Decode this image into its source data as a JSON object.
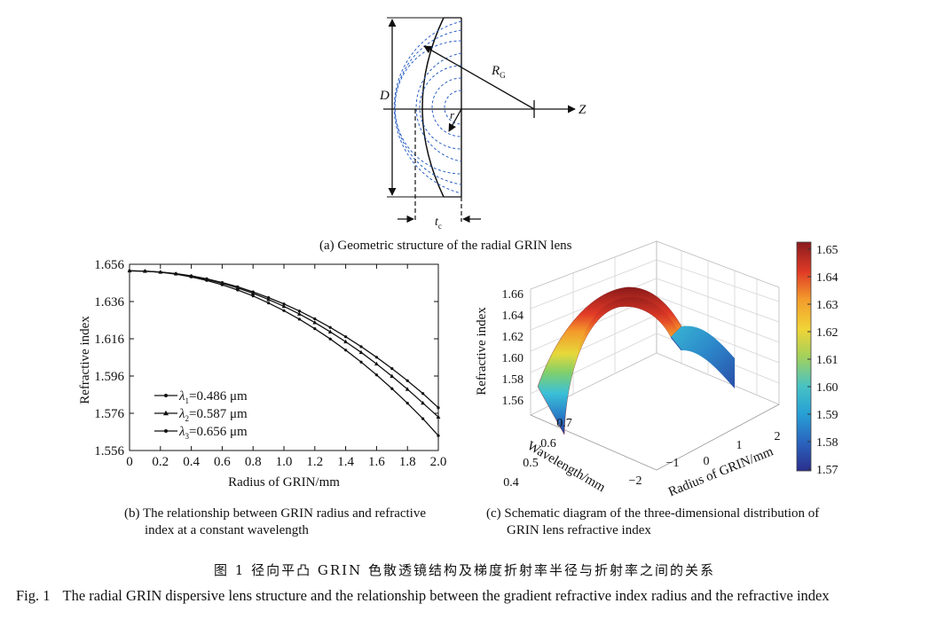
{
  "panel_a": {
    "label_D": "D",
    "label_RG": "R",
    "label_RG_sub": "G",
    "label_r": "r",
    "label_Z": "Z",
    "label_tc": "t",
    "label_tc_sub": "c",
    "caption": "(a) Geometric structure of the radial GRIN lens"
  },
  "panel_b": {
    "caption_line1": "(b) The relationship between GRIN radius and refractive",
    "caption_line2": "index at a constant wavelength"
  },
  "panel_c": {
    "caption_line1": "(c) Schematic diagram of the three-dimensional distribution of",
    "caption_line2": "GRIN lens refractive index",
    "zlabel": "Refractive index",
    "ylabel": "Wavelength/mm",
    "xlabel": "Radius of GRIN/mm",
    "zticks": [
      "1.56",
      "1.58",
      "1.60",
      "1.62",
      "1.64",
      "1.66"
    ],
    "yticks": [
      "0.4",
      "0.5",
      "0.6",
      "0.7"
    ],
    "xticks": [
      "−2",
      "−1",
      "0",
      "1",
      "2"
    ],
    "colorbar_ticks": [
      "1.65",
      "1.64",
      "1.63",
      "1.62",
      "1.61",
      "1.60",
      "1.59",
      "1.58",
      "1.57"
    ]
  },
  "chart_data": [
    {
      "type": "line",
      "xlabel": "Radius of GRIN/mm",
      "ylabel": "Refractive index",
      "xlim": [
        0,
        2.0
      ],
      "ylim": [
        1.556,
        1.656
      ],
      "xticks": [
        "0",
        "0.2",
        "0.4",
        "0.6",
        "0.8",
        "1.0",
        "1.2",
        "1.4",
        "1.6",
        "1.8",
        "2.0"
      ],
      "yticks": [
        "1.556",
        "1.576",
        "1.596",
        "1.616",
        "1.636",
        "1.656"
      ],
      "x": [
        0,
        0.1,
        0.2,
        0.3,
        0.4,
        0.5,
        0.6,
        0.7,
        0.8,
        0.9,
        1.0,
        1.1,
        1.2,
        1.3,
        1.4,
        1.5,
        1.6,
        1.7,
        1.8,
        1.9,
        2.0
      ],
      "series": [
        {
          "name": "λ1=0.486 μm",
          "legend_symbol": "λ",
          "legend_sub": "1",
          "legend_value": "=0.486 μm",
          "values": [
            1.6525,
            1.6523,
            1.6517,
            1.6507,
            1.6492,
            1.6473,
            1.645,
            1.6422,
            1.639,
            1.6352,
            1.6311,
            1.6265,
            1.6214,
            1.6159,
            1.6099,
            1.6035,
            1.5966,
            1.5892,
            1.5814,
            1.5731,
            1.564
          ]
        },
        {
          "name": "λ2=0.587 μm",
          "legend_symbol": "λ",
          "legend_sub": "2",
          "legend_value": "=0.587 μm",
          "values": [
            1.6525,
            1.6523,
            1.6518,
            1.6509,
            1.6496,
            1.6479,
            1.6458,
            1.6433,
            1.6404,
            1.6371,
            1.6334,
            1.6293,
            1.6247,
            1.6197,
            1.6144,
            1.6087,
            1.6025,
            1.5959,
            1.5889,
            1.5815,
            1.574
          ]
        },
        {
          "name": "λ3=0.656 μm",
          "legend_symbol": "λ",
          "legend_sub": "3",
          "legend_value": "=0.656 μm",
          "values": [
            1.6525,
            1.6523,
            1.6518,
            1.651,
            1.6498,
            1.6482,
            1.6462,
            1.6439,
            1.6412,
            1.6381,
            1.6347,
            1.6309,
            1.6267,
            1.6221,
            1.6171,
            1.6118,
            1.6061,
            1.6,
            1.5935,
            1.5866,
            1.579
          ]
        }
      ]
    }
  ],
  "figure_caption_cn": "图 1    径向平凸 GRIN 色散透镜结构及梯度折射率半径与折射率之间的关系",
  "figure_caption_en_num": "Fig. 1",
  "figure_caption_en": "The radial GRIN dispersive lens structure and the relationship between the gradient refractive index radius and the refractive index"
}
